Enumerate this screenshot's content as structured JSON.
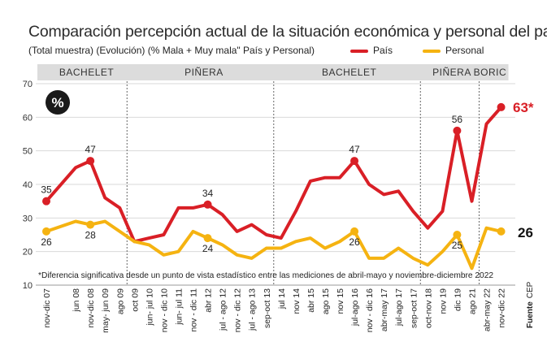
{
  "header": {
    "title": "Comparación percepción actual de la situación económica y personal del país",
    "subtitle": "(Total muestra) (Evolución) (% Mala + Muy mala\" País y Personal)"
  },
  "badge": "%",
  "source": {
    "label": "Fuente",
    "value": "CEP"
  },
  "chart_data": {
    "type": "line",
    "title": "Comparación percepción actual de la situación económica y personal del país",
    "subtitle": "(Total muestra) (Evolución) (% Mala + Muy mala\" País y Personal)",
    "ylim": [
      10,
      70
    ],
    "yticks": [
      10,
      20,
      30,
      40,
      50,
      60,
      70
    ],
    "categories": [
      "nov-dic 07",
      "",
      "jun 08",
      "nov-dic 08",
      "may- jun 09",
      "ago 09",
      "oct 09",
      "jun- jul 10",
      "nov - dic 10",
      "jun- jul 11",
      "nov - dic 11",
      "abr 12",
      "jul - ago 12",
      "nov - dic 12",
      "jul - ago 13",
      "sep-oct 13",
      "jul 14",
      "nov 14",
      "abr 15",
      "ago 15",
      "nov 15",
      "jul-ago 16",
      "nov - dic 16",
      "abr-may 17",
      "jul-ago 17",
      "sep-oct 17",
      "oct-nov 18",
      "nov 19",
      "dic 19",
      "ago 21",
      "abr-may 22",
      "nov-dic 22"
    ],
    "series": [
      {
        "name": "País",
        "color": "#d91f26",
        "values": [
          35,
          null,
          45,
          47,
          36,
          33,
          23,
          24,
          25,
          33,
          33,
          34,
          31,
          26,
          28,
          25,
          24,
          32,
          41,
          42,
          42,
          47,
          40,
          37,
          38,
          32,
          27,
          32,
          56,
          35,
          58,
          63
        ]
      },
      {
        "name": "Personal",
        "color": "#f5b311",
        "values": [
          26,
          null,
          29,
          28,
          29,
          26,
          23,
          22,
          19,
          20,
          26,
          24,
          22,
          19,
          18,
          21,
          21,
          23,
          24,
          21,
          23,
          26,
          18,
          18,
          21,
          18,
          16,
          20,
          25,
          15,
          27,
          26
        ]
      }
    ],
    "data_labels": [
      {
        "series": "País",
        "index": 0,
        "text": "35"
      },
      {
        "series": "País",
        "index": 3,
        "text": "47"
      },
      {
        "series": "País",
        "index": 11,
        "text": "34"
      },
      {
        "series": "País",
        "index": 21,
        "text": "47"
      },
      {
        "series": "País",
        "index": 28,
        "text": "56"
      },
      {
        "series": "Personal",
        "index": 0,
        "text": "26"
      },
      {
        "series": "Personal",
        "index": 3,
        "text": "28"
      },
      {
        "series": "Personal",
        "index": 11,
        "text": "24"
      },
      {
        "series": "Personal",
        "index": 21,
        "text": "26"
      },
      {
        "series": "Personal",
        "index": 28,
        "text": "25"
      }
    ],
    "end_labels": {
      "pais": "63*",
      "personal": "26"
    },
    "periods": [
      "BACHELET",
      "PIÑERA",
      "BACHELET",
      "PIÑERA",
      "BORIC"
    ],
    "footnote": "*Diferencia significativa desde un punto de vista estadístico entre las mediciones de abril-mayo y noviembre-diciembre 2022",
    "grid": true,
    "legend": "top-right"
  }
}
